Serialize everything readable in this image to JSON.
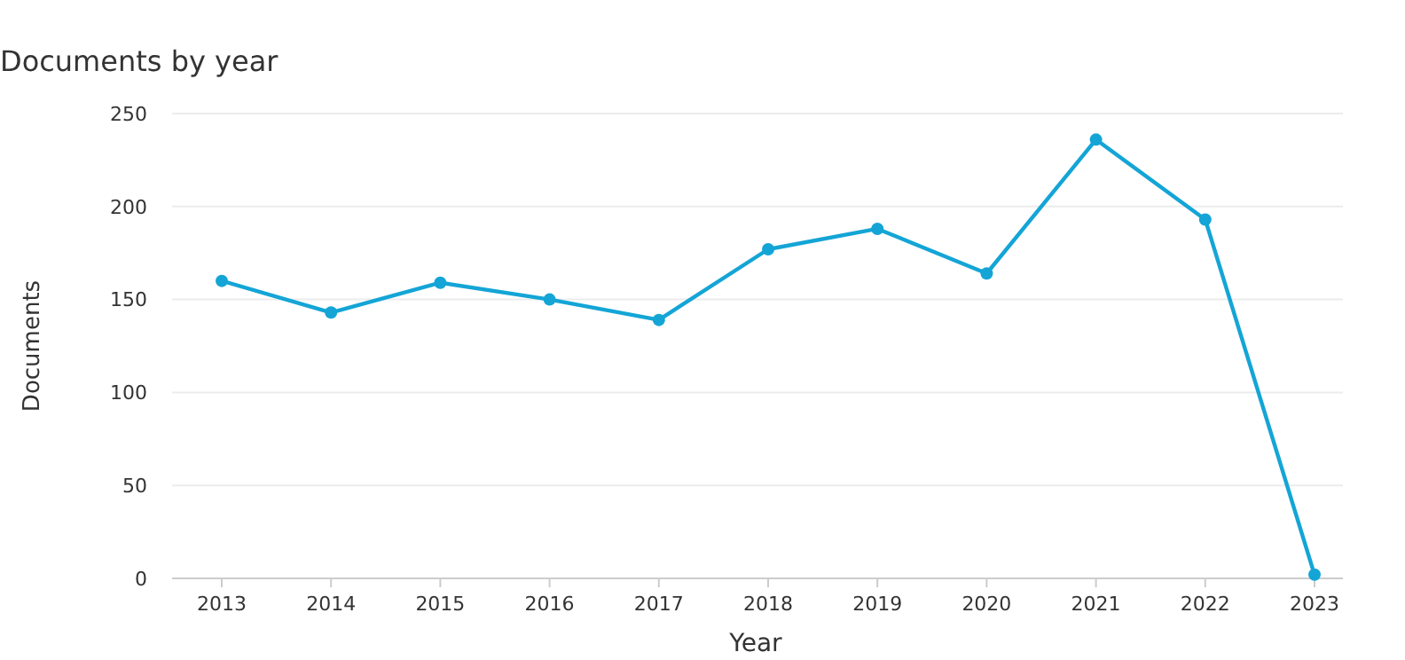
{
  "chart_data": {
    "type": "line",
    "title": "Documents by year",
    "xlabel": "Year",
    "ylabel": "Documents",
    "categories": [
      "2013",
      "2014",
      "2015",
      "2016",
      "2017",
      "2018",
      "2019",
      "2020",
      "2021",
      "2022",
      "2023"
    ],
    "series": [
      {
        "color": "#14a5d6",
        "values": [
          160,
          143,
          159,
          150,
          139,
          177,
          188,
          164,
          236,
          193,
          2
        ]
      }
    ],
    "ylim": [
      0,
      250
    ],
    "yticks": [
      0,
      50,
      100,
      150,
      200,
      250
    ],
    "grid": "y",
    "marker": "circle",
    "line_style": "solid"
  }
}
